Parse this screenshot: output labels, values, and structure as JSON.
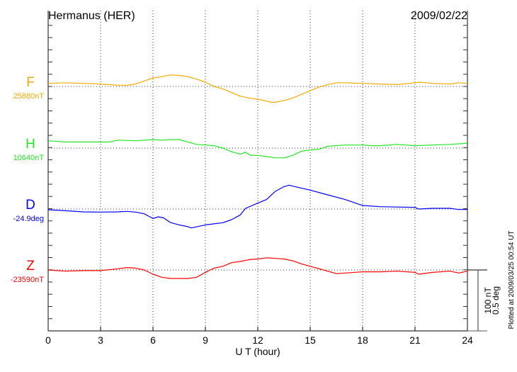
{
  "chart_data": {
    "type": "line",
    "title": "Hermanus (HER)",
    "date": "2009/02/22",
    "xlabel": "U T (hour)",
    "xlim": [
      0,
      24
    ],
    "xticks": [
      "0",
      "3",
      "6",
      "9",
      "12",
      "15",
      "18",
      "21",
      "24"
    ],
    "grid": true,
    "scale_bar": {
      "nT": "100 nT",
      "deg": "0.5 deg",
      "nT_value": 100,
      "deg_value": 0.5
    },
    "footnote": "Plotted at 2009/03/25 00:54 UT",
    "series": [
      {
        "name": "F",
        "baseline_label": "25880nT",
        "baseline": 25880,
        "unit": "nT",
        "color": "#f5aa00",
        "x": [
          0,
          1,
          2,
          3,
          4,
          4.5,
          5,
          5.5,
          6,
          6.5,
          7,
          7.5,
          8,
          8.5,
          9,
          9.5,
          10,
          10.5,
          11,
          11.5,
          12,
          12.5,
          12.8,
          13,
          13.5,
          14,
          14.5,
          15,
          15.5,
          16,
          16.5,
          17,
          18,
          19,
          20,
          21,
          21.3,
          22,
          23,
          23.5,
          24
        ],
        "y": [
          25885,
          25886,
          25885,
          25884,
          25882,
          25882,
          25884,
          25889,
          25894,
          25896,
          25899,
          25898,
          25896,
          25892,
          25887,
          25880,
          25876,
          25870,
          25864,
          25861,
          25859,
          25856,
          25854,
          25854,
          25857,
          25861,
          25867,
          25873,
          25879,
          25883,
          25886,
          25886,
          25885,
          25884,
          25883,
          25886,
          25887,
          25885,
          25884,
          25886,
          25885
        ]
      },
      {
        "name": "H",
        "baseline_label": "10640nT",
        "baseline": 10640,
        "unit": "nT",
        "color": "#22e622",
        "x": [
          0,
          1,
          2,
          3,
          3.5,
          4,
          5,
          6,
          6.5,
          7,
          7.5,
          8,
          8.5,
          9,
          9.5,
          10,
          10.5,
          11,
          11.3,
          11.6,
          12,
          12.5,
          13,
          13.5,
          14,
          14.5,
          15,
          15.5,
          16,
          17,
          18,
          18.5,
          19,
          20,
          21,
          22,
          23,
          24
        ],
        "y": [
          10652,
          10650,
          10650,
          10650,
          10650,
          10653,
          10652,
          10654,
          10653,
          10654,
          10654,
          10650,
          10646,
          10645,
          10644,
          10640,
          10634,
          10630,
          10633,
          10628,
          10628,
          10626,
          10624,
          10624,
          10628,
          10635,
          10637,
          10638,
          10643,
          10645,
          10645,
          10644,
          10644,
          10646,
          10644,
          10645,
          10646,
          10648
        ]
      },
      {
        "name": "D",
        "baseline_label": "-24.9deg",
        "baseline": -24.9,
        "unit": "deg",
        "color": "#0000ff",
        "x": [
          0,
          1,
          2,
          3,
          4,
          4.5,
          5,
          5.5,
          6,
          6.3,
          6.6,
          7,
          7.5,
          8,
          8.2,
          9,
          10,
          10.5,
          11,
          11.3,
          12,
          12.5,
          13,
          13.5,
          13.8,
          14,
          15,
          16,
          17,
          18,
          19,
          20,
          21,
          21.2,
          22,
          23,
          23.5,
          24
        ],
        "y": [
          -24.906,
          -24.914,
          -24.923,
          -24.925,
          -24.923,
          -24.919,
          -24.925,
          -24.939,
          -24.978,
          -24.964,
          -24.972,
          -25.011,
          -25.03,
          -25.045,
          -25.055,
          -25.03,
          -25.012,
          -24.987,
          -24.948,
          -24.894,
          -24.852,
          -24.822,
          -24.755,
          -24.716,
          -24.704,
          -24.712,
          -24.745,
          -24.784,
          -24.822,
          -24.871,
          -24.881,
          -24.884,
          -24.886,
          -24.9,
          -24.894,
          -24.894,
          -24.904,
          -24.904
        ]
      },
      {
        "name": "Z",
        "baseline_label": "-23590nT",
        "baseline": -23590,
        "unit": "nT",
        "color": "#ff0000",
        "x": [
          0,
          1,
          2,
          3,
          4,
          4.5,
          5,
          5.5,
          6,
          6.5,
          7,
          7.5,
          8,
          8.5,
          9,
          9.5,
          10,
          10.5,
          11,
          11.5,
          12,
          12.5,
          13,
          13.5,
          14,
          14.5,
          15,
          16,
          16.5,
          17,
          18,
          19,
          20,
          21,
          21.2,
          22,
          23,
          23.5,
          24
        ],
        "y": [
          -23590,
          -23592,
          -23591,
          -23591,
          -23588,
          -23586,
          -23587,
          -23590,
          -23597,
          -23602,
          -23604,
          -23604,
          -23604,
          -23602,
          -23594,
          -23587,
          -23584,
          -23578,
          -23576,
          -23573,
          -23572,
          -23570,
          -23571,
          -23572,
          -23575,
          -23580,
          -23584,
          -23592,
          -23596,
          -23595,
          -23593,
          -23593,
          -23592,
          -23594,
          -23597,
          -23594,
          -23592,
          -23595,
          -23592
        ]
      }
    ]
  }
}
